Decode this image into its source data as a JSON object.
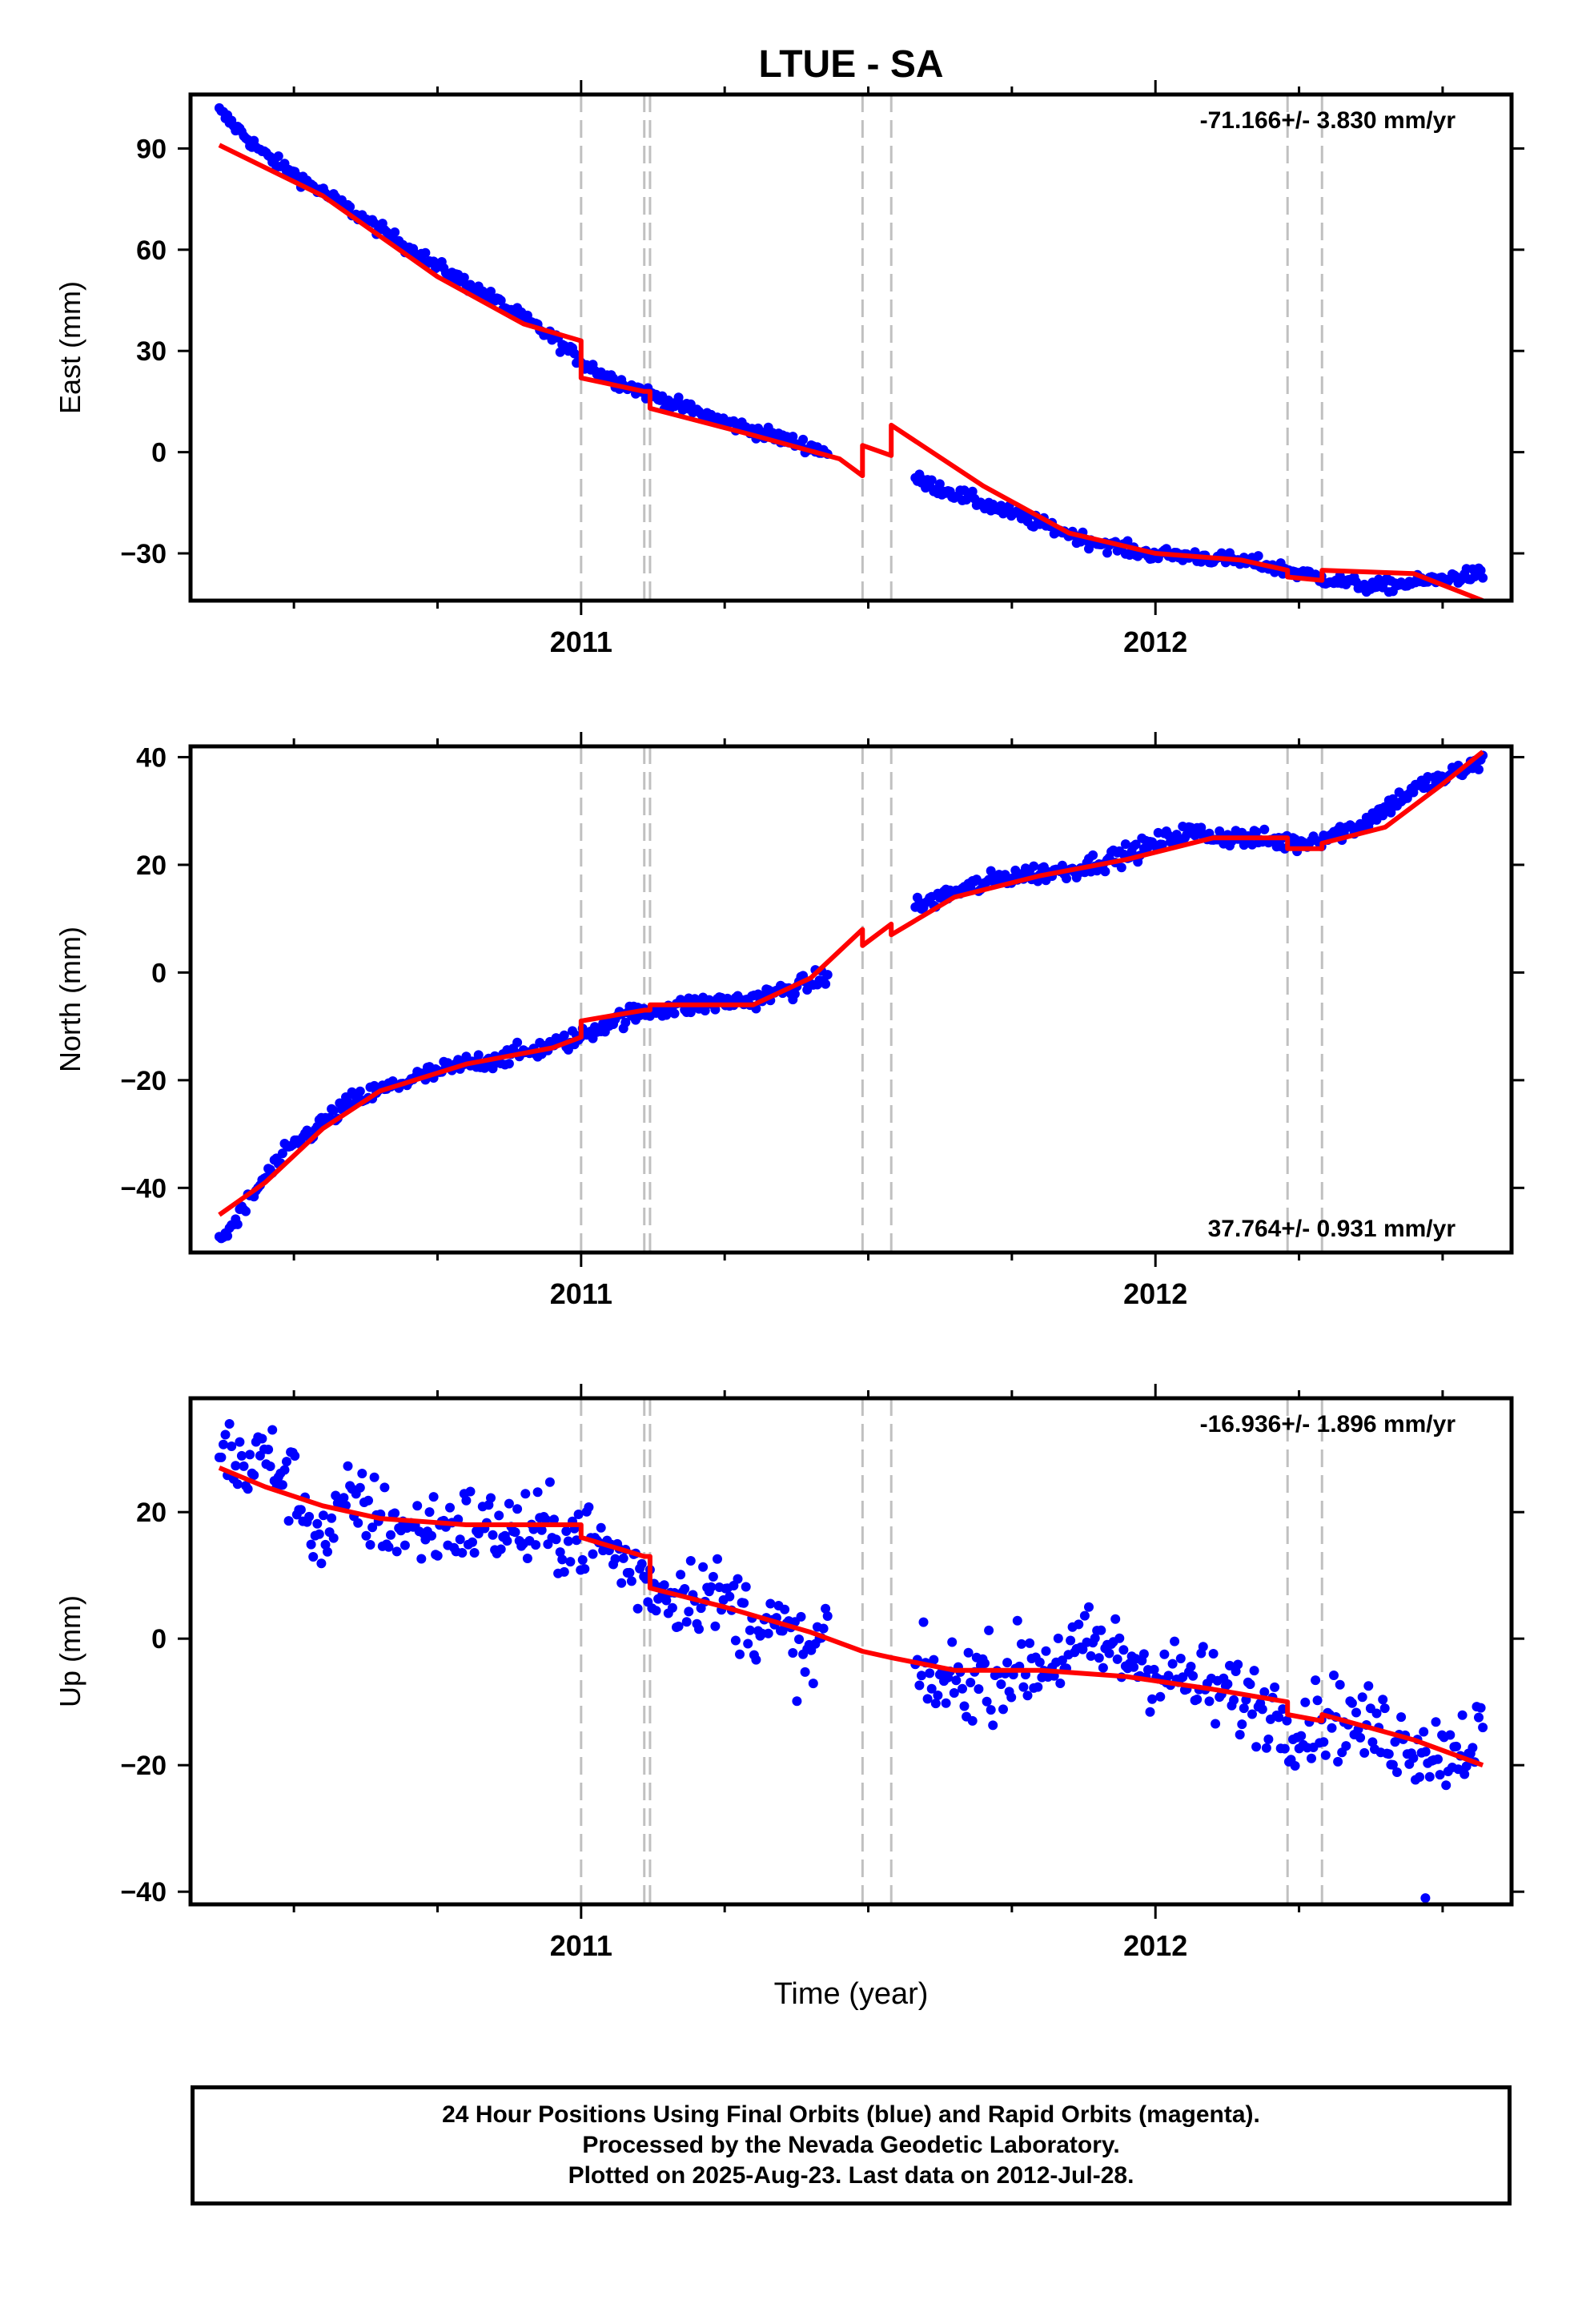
{
  "colors": {
    "data_points": "#0000ff",
    "model_line": "#ff0000",
    "event_lines": "#c0c0c0",
    "frame": "#000000"
  },
  "chart_data": [
    {
      "type": "scatter",
      "title": "LTUE - SA",
      "xlabel": "",
      "ylabel": "East (mm)",
      "xlim": [
        2010.32,
        2012.62
      ],
      "ylim": [
        -44,
        106
      ],
      "yticks": [
        90,
        60,
        30,
        0,
        -30
      ],
      "xtick_labels": [
        "2011",
        "2012"
      ],
      "velocity_label": "-71.166+/- 3.830 mm/yr",
      "velocity_position": "top-right",
      "event_lines": [
        2011.0,
        2011.11,
        2011.12,
        2011.49,
        2011.54,
        2012.23,
        2012.29
      ],
      "series": [
        {
          "kind": "observed",
          "x": [
            2010.37,
            2010.45,
            2010.55,
            2010.65,
            2010.75,
            2010.85,
            2010.95,
            2011.0,
            2011.05,
            2011.15,
            2011.25,
            2011.35,
            2011.45,
            2011.58,
            2011.68,
            2011.78,
            2011.88,
            2011.98,
            2012.08,
            2012.18,
            2012.28,
            2012.38,
            2012.48,
            2012.57
          ],
          "y": [
            101,
            88,
            77,
            66,
            55,
            45,
            34,
            27,
            22,
            15,
            9,
            4,
            -1,
            -8,
            -14,
            -20,
            -26,
            -30,
            -31,
            -33,
            -37,
            -40,
            -38,
            -36
          ]
        },
        {
          "kind": "model",
          "x": [
            2010.37,
            2010.55,
            2010.75,
            2010.9,
            2011.0,
            2011.0,
            2011.11,
            2011.12,
            2011.12,
            2011.3,
            2011.45,
            2011.49,
            2011.49,
            2011.54,
            2011.54,
            2011.7,
            2011.85,
            2012.0,
            2012.15,
            2012.23,
            2012.23,
            2012.29,
            2012.29,
            2012.45,
            2012.57
          ],
          "y": [
            91,
            76,
            52,
            38,
            33,
            22,
            18,
            18,
            13,
            5,
            -2,
            -7,
            2,
            -1,
            8,
            -10,
            -24,
            -30,
            -32,
            -35,
            -37,
            -38,
            -35,
            -36,
            -44
          ]
        }
      ]
    },
    {
      "type": "scatter",
      "title": "",
      "xlabel": "",
      "ylabel": "North (mm)",
      "xlim": [
        2010.32,
        2012.62
      ],
      "ylim": [
        -52,
        42
      ],
      "yticks": [
        40,
        20,
        0,
        -20,
        -40
      ],
      "xtick_labels": [
        "2011",
        "2012"
      ],
      "velocity_label": "37.764+/- 0.931 mm/yr",
      "velocity_position": "bottom-right",
      "event_lines": [
        2011.0,
        2011.11,
        2011.12,
        2011.49,
        2011.54,
        2012.23,
        2012.29
      ],
      "series": [
        {
          "kind": "observed",
          "x": [
            2010.37,
            2010.4,
            2010.45,
            2010.5,
            2010.6,
            2010.7,
            2010.8,
            2010.9,
            2011.0,
            2011.05,
            2011.12,
            2011.2,
            2011.3,
            2011.4,
            2011.47,
            2011.58,
            2011.65,
            2011.75,
            2011.85,
            2011.95,
            2012.05,
            2012.15,
            2012.25,
            2012.35,
            2012.45,
            2012.57
          ],
          "y": [
            -50,
            -46,
            -38,
            -32,
            -24,
            -20,
            -17,
            -15,
            -12,
            -9,
            -7,
            -6,
            -5,
            -2,
            2,
            12,
            15,
            18,
            19,
            22,
            26,
            25,
            24,
            27,
            34,
            39
          ]
        },
        {
          "kind": "model",
          "x": [
            2010.37,
            2010.45,
            2010.55,
            2010.65,
            2010.8,
            2010.95,
            2011.0,
            2011.0,
            2011.11,
            2011.12,
            2011.12,
            2011.3,
            2011.4,
            2011.49,
            2011.49,
            2011.54,
            2011.54,
            2011.65,
            2011.8,
            2011.95,
            2012.1,
            2012.23,
            2012.23,
            2012.29,
            2012.29,
            2012.4,
            2012.5,
            2012.57
          ],
          "y": [
            -45,
            -39,
            -29,
            -22,
            -17,
            -14,
            -12,
            -9,
            -7,
            -7,
            -6,
            -6,
            -1,
            8,
            5,
            9,
            7,
            14,
            18,
            21,
            25,
            25,
            23,
            23,
            24,
            27,
            35,
            41
          ]
        }
      ]
    },
    {
      "type": "scatter",
      "title": "",
      "xlabel": "Time (year)",
      "ylabel": "Up (mm)",
      "xlim": [
        2010.32,
        2012.62
      ],
      "ylim": [
        -42,
        38
      ],
      "yticks": [
        20,
        0,
        -20,
        -40
      ],
      "xtick_labels": [
        "2011",
        "2012"
      ],
      "velocity_label": "-16.936+/- 1.896 mm/yr",
      "velocity_position": "top-right",
      "event_lines": [
        2011.0,
        2011.11,
        2011.12,
        2011.49,
        2011.54,
        2012.23,
        2012.29
      ],
      "series": [
        {
          "kind": "observed",
          "x": [
            2010.37,
            2010.4,
            2010.45,
            2010.5,
            2010.55,
            2010.6,
            2010.65,
            2010.7,
            2010.8,
            2010.9,
            2011.0,
            2011.05,
            2011.1,
            2011.15,
            2011.2,
            2011.25,
            2011.3,
            2011.35,
            2011.4,
            2011.45,
            2011.6,
            2011.7,
            2011.8,
            2011.9,
            2012.0,
            2012.1,
            2012.2,
            2012.25,
            2012.3,
            2012.4,
            2012.5,
            2012.57
          ],
          "y": [
            33,
            27,
            29,
            24,
            15,
            22,
            19,
            17,
            18,
            17,
            16,
            14,
            10,
            7,
            8,
            6,
            3,
            1,
            -4,
            8,
            -7,
            -6,
            -4,
            -1,
            -5,
            -8,
            -11,
            -14,
            -12,
            -15,
            -18,
            -15
          ]
        },
        {
          "kind": "model",
          "x": [
            2010.37,
            2010.45,
            2010.55,
            2010.65,
            2010.8,
            2010.95,
            2011.0,
            2011.0,
            2011.11,
            2011.12,
            2011.12,
            2011.25,
            2011.4,
            2011.49,
            2011.54,
            2011.65,
            2011.8,
            2011.95,
            2012.1,
            2012.23,
            2012.23,
            2012.29,
            2012.29,
            2012.45,
            2012.57
          ],
          "y": [
            27,
            24,
            21,
            19,
            18,
            18,
            18,
            16,
            13,
            13,
            8,
            5,
            1,
            -2,
            -3,
            -5,
            -5,
            -6,
            -8,
            -10,
            -12,
            -13,
            -12,
            -16,
            -20
          ]
        }
      ]
    }
  ],
  "footer": {
    "line1": "24 Hour Positions Using Final Orbits (blue) and Rapid Orbits (magenta).",
    "line2": "Processed by the Nevada Geodetic Laboratory.",
    "line3": "Plotted on 2025-Aug-23. Last data on 2012-Jul-28."
  }
}
